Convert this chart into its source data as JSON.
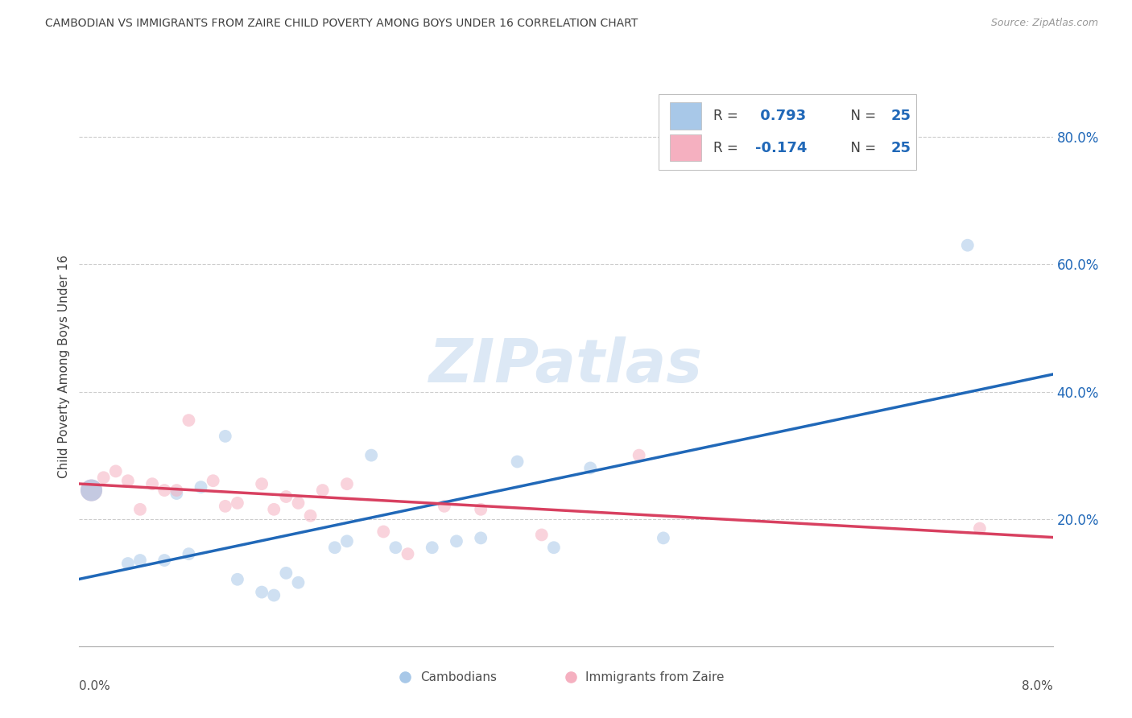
{
  "title": "CAMBODIAN VS IMMIGRANTS FROM ZAIRE CHILD POVERTY AMONG BOYS UNDER 16 CORRELATION CHART",
  "source": "Source: ZipAtlas.com",
  "ylabel": "Child Poverty Among Boys Under 16",
  "x_min": 0.0,
  "x_max": 0.08,
  "y_min": 0.0,
  "y_max": 0.88,
  "y_ticks": [
    0.2,
    0.4,
    0.6,
    0.8
  ],
  "y_tick_labels": [
    "20.0%",
    "40.0%",
    "60.0%",
    "80.0%"
  ],
  "R_cambodian": 0.793,
  "N_cambodian": 25,
  "R_zaire": -0.174,
  "N_zaire": 25,
  "cambodian_color": "#a8c8e8",
  "zaire_color": "#f5b0c0",
  "line_cambodian_color": "#2068b8",
  "line_zaire_color": "#d84060",
  "background_color": "#ffffff",
  "grid_color": "#cccccc",
  "title_color": "#404040",
  "watermark_color": "#dce8f5",
  "marker_size": 130,
  "marker_alpha": 0.55,
  "large_marker_size": 380,
  "cambodian_scatter_x": [
    0.001,
    0.004,
    0.005,
    0.007,
    0.008,
    0.009,
    0.01,
    0.012,
    0.013,
    0.015,
    0.016,
    0.017,
    0.018,
    0.021,
    0.022,
    0.024,
    0.026,
    0.029,
    0.031,
    0.033,
    0.036,
    0.039,
    0.042,
    0.048,
    0.073
  ],
  "cambodian_scatter_y": [
    0.245,
    0.13,
    0.135,
    0.135,
    0.24,
    0.145,
    0.25,
    0.33,
    0.105,
    0.085,
    0.08,
    0.115,
    0.1,
    0.155,
    0.165,
    0.3,
    0.155,
    0.155,
    0.165,
    0.17,
    0.29,
    0.155,
    0.28,
    0.17,
    0.63
  ],
  "zaire_scatter_x": [
    0.002,
    0.003,
    0.004,
    0.005,
    0.006,
    0.007,
    0.008,
    0.009,
    0.011,
    0.012,
    0.013,
    0.015,
    0.016,
    0.017,
    0.018,
    0.019,
    0.02,
    0.022,
    0.025,
    0.027,
    0.03,
    0.033,
    0.038,
    0.046,
    0.074
  ],
  "zaire_scatter_y": [
    0.265,
    0.275,
    0.26,
    0.215,
    0.255,
    0.245,
    0.245,
    0.355,
    0.26,
    0.22,
    0.225,
    0.255,
    0.215,
    0.235,
    0.225,
    0.205,
    0.245,
    0.255,
    0.18,
    0.145,
    0.22,
    0.215,
    0.175,
    0.3,
    0.185
  ]
}
